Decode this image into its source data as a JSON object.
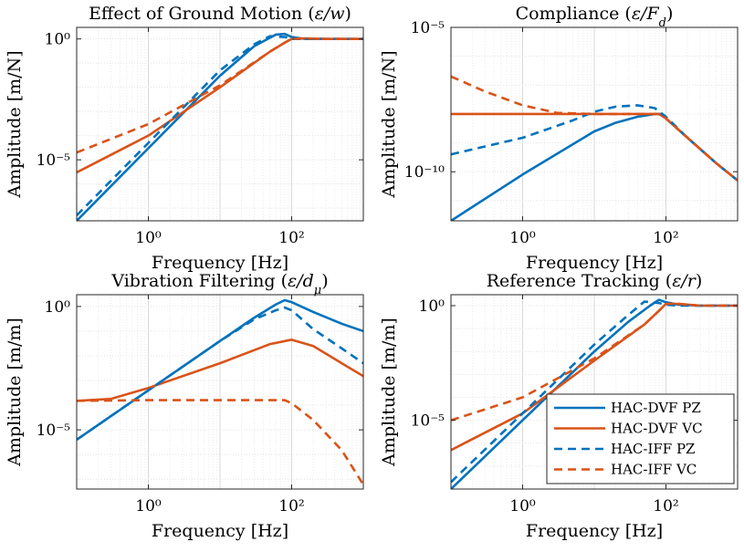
{
  "colors": {
    "pz": "#0072BD",
    "vc": "#D95319"
  },
  "legend": {
    "panel": 3,
    "placement": "bottom-right",
    "entries": [
      {
        "label": "HAC-DVF PZ",
        "color": "#0072BD",
        "dash": false
      },
      {
        "label": "HAC-DVF VC",
        "color": "#D95319",
        "dash": false
      },
      {
        "label": "HAC-IFF PZ",
        "color": "#0072BD",
        "dash": true
      },
      {
        "label": "HAC-IFF VC",
        "color": "#D95319",
        "dash": true
      }
    ]
  },
  "chart_data": [
    {
      "type": "line",
      "title_text": "Effect of Ground Motion (",
      "title_math": "ε/w",
      "title_close": ")",
      "xlabel": "Frequency [Hz]",
      "ylabel": "Amplitude [m/N]",
      "xscale": "log",
      "yscale": "log",
      "xlim": [
        0.1,
        1000
      ],
      "ylim": [
        3e-08,
        3
      ],
      "grid": true,
      "xticks": [
        {
          "value": 1,
          "label": "10⁰"
        },
        {
          "value": 100,
          "label": "10²"
        }
      ],
      "yticks": [
        {
          "value": 1,
          "label": "10⁰"
        },
        {
          "value": 1e-05,
          "label": "10⁻⁵"
        }
      ],
      "series": [
        {
          "color": "#0072BD",
          "dash": false,
          "x": [
            0.1,
            1,
            10,
            30,
            60,
            80,
            100,
            150,
            300,
            1000
          ],
          "y": [
            3e-08,
            3e-05,
            0.03,
            0.5,
            1.5,
            1.6,
            1.2,
            1.0,
            1.0,
            1.0
          ]
        },
        {
          "color": "#D95319",
          "dash": false,
          "x": [
            0.1,
            1,
            10,
            50,
            80,
            100,
            150,
            300,
            1000
          ],
          "y": [
            3e-06,
            0.0001,
            0.01,
            0.3,
            0.7,
            1.0,
            1.05,
            1.0,
            1.0
          ]
        },
        {
          "color": "#0072BD",
          "dash": true,
          "x": [
            0.1,
            1,
            10,
            30,
            50,
            80,
            100,
            150,
            300,
            1000
          ],
          "y": [
            5e-08,
            5e-05,
            0.05,
            0.6,
            1.3,
            1.2,
            1.0,
            1.0,
            1.0,
            1.0
          ]
        },
        {
          "color": "#D95319",
          "dash": true,
          "x": [
            0.1,
            1,
            10,
            50,
            80,
            100,
            150,
            300,
            1000
          ],
          "y": [
            2e-05,
            0.0003,
            0.012,
            0.3,
            0.7,
            1.0,
            1.05,
            1.0,
            1.0
          ]
        }
      ]
    },
    {
      "type": "line",
      "title_text": "Compliance (",
      "title_math": "ε/F_d",
      "title_close": ")",
      "xlabel": "Frequency [Hz]",
      "ylabel": "Amplitude [m/N]",
      "xscale": "log",
      "yscale": "log",
      "xlim": [
        0.1,
        1000
      ],
      "ylim": [
        2e-12,
        1e-05
      ],
      "grid": true,
      "xticks": [
        {
          "value": 1,
          "label": "10⁰"
        },
        {
          "value": 100,
          "label": "10²"
        }
      ],
      "yticks": [
        {
          "value": 1e-05,
          "label": "10⁻⁵"
        },
        {
          "value": 1e-10,
          "label": "10⁻¹⁰"
        }
      ],
      "series": [
        {
          "color": "#0072BD",
          "dash": false,
          "x": [
            0.1,
            1,
            10,
            20,
            40,
            70,
            85,
            100,
            200,
            500,
            1000
          ],
          "y": [
            2e-12,
            8e-11,
            2.5e-09,
            5e-09,
            8e-09,
            1e-08,
            1e-08,
            7e-09,
            1.5e-09,
            2e-10,
            5e-11
          ]
        },
        {
          "color": "#D95319",
          "dash": false,
          "x": [
            0.1,
            1,
            10,
            50,
            80,
            100,
            200,
            500,
            1000
          ],
          "y": [
            1e-08,
            1e-08,
            1e-08,
            1e-08,
            1e-08,
            7e-09,
            1.5e-09,
            2e-10,
            5e-11
          ]
        },
        {
          "color": "#0072BD",
          "dash": true,
          "x": [
            0.1,
            1,
            5,
            10,
            20,
            40,
            70,
            100,
            200,
            500,
            1000
          ],
          "y": [
            4e-10,
            1.5e-09,
            6e-09,
            1.2e-08,
            1.8e-08,
            2e-08,
            1.6e-08,
            8e-09,
            1.5e-09,
            2e-10,
            5e-11
          ]
        },
        {
          "color": "#D95319",
          "dash": true,
          "x": [
            0.1,
            0.3,
            1,
            3,
            10,
            80,
            100,
            200,
            500,
            1000
          ],
          "y": [
            2e-07,
            6e-08,
            2e-08,
            1.1e-08,
            1e-08,
            1e-08,
            7e-09,
            1.5e-09,
            2e-10,
            5e-11
          ]
        }
      ]
    },
    {
      "type": "line",
      "title_text": "Vibration Filtering (",
      "title_math": "ε/d_μ",
      "title_close": ")",
      "xlabel": "Frequency [Hz]",
      "ylabel": "Amplitude [m/m]",
      "xscale": "log",
      "yscale": "log",
      "xlim": [
        0.1,
        1000
      ],
      "ylim": [
        4e-08,
        3
      ],
      "grid": true,
      "xticks": [
        {
          "value": 1,
          "label": "10⁰"
        },
        {
          "value": 100,
          "label": "10²"
        }
      ],
      "yticks": [
        {
          "value": 1,
          "label": "10⁰"
        },
        {
          "value": 1e-05,
          "label": "10⁻⁵"
        }
      ],
      "series": [
        {
          "color": "#0072BD",
          "dash": false,
          "x": [
            0.1,
            1,
            10,
            30,
            60,
            80,
            100,
            200,
            500,
            1000
          ],
          "y": [
            4e-06,
            0.0004,
            0.04,
            0.35,
            1.2,
            1.8,
            1.5,
            0.6,
            0.2,
            0.1
          ]
        },
        {
          "color": "#D95319",
          "dash": false,
          "x": [
            0.1,
            0.3,
            1,
            10,
            50,
            100,
            200,
            500,
            1000
          ],
          "y": [
            0.00015,
            0.00018,
            0.0005,
            0.005,
            0.03,
            0.045,
            0.025,
            0.005,
            0.0015
          ]
        },
        {
          "color": "#0072BD",
          "dash": true,
          "x": [
            0.1,
            1,
            10,
            30,
            60,
            80,
            100,
            200,
            500,
            1000
          ],
          "y": [
            4e-06,
            0.0004,
            0.04,
            0.3,
            0.7,
            0.9,
            0.7,
            0.12,
            0.02,
            0.005
          ]
        },
        {
          "color": "#D95319",
          "dash": true,
          "x": [
            0.1,
            1,
            10,
            50,
            80,
            100,
            200,
            500,
            1000
          ],
          "y": [
            0.00015,
            0.00016,
            0.00016,
            0.00016,
            0.00016,
            0.00012,
            2.5e-05,
            1.5e-06,
            6e-08
          ]
        }
      ]
    },
    {
      "type": "line",
      "title_text": "Reference Tracking (",
      "title_math": "ε/r",
      "title_close": ")",
      "xlabel": "Frequency [Hz]",
      "ylabel": "Amplitude [m/m]",
      "xscale": "log",
      "yscale": "log",
      "xlim": [
        0.1,
        1000
      ],
      "ylim": [
        1e-08,
        3
      ],
      "grid": true,
      "xticks": [
        {
          "value": 1,
          "label": "10⁰"
        },
        {
          "value": 100,
          "label": "10²"
        }
      ],
      "yticks": [
        {
          "value": 1,
          "label": "10⁰"
        },
        {
          "value": 1e-05,
          "label": "10⁻⁵"
        }
      ],
      "series": [
        {
          "color": "#0072BD",
          "dash": false,
          "x": [
            0.1,
            1,
            10,
            30,
            60,
            80,
            100,
            150,
            300,
            1000
          ],
          "y": [
            1e-08,
            1e-05,
            0.01,
            0.2,
            1.0,
            1.8,
            1.4,
            1.1,
            1.0,
            1.0
          ]
        },
        {
          "color": "#D95319",
          "dash": false,
          "x": [
            0.1,
            1,
            10,
            50,
            80,
            100,
            150,
            300,
            1000
          ],
          "y": [
            5e-07,
            2e-05,
            0.004,
            0.15,
            0.6,
            1.2,
            1.2,
            1.0,
            1.0
          ]
        },
        {
          "color": "#0072BD",
          "dash": true,
          "x": [
            0.1,
            1,
            10,
            30,
            50,
            80,
            100,
            150,
            300,
            1000
          ],
          "y": [
            2e-08,
            2e-05,
            0.02,
            0.4,
            1.5,
            1.3,
            1.1,
            1.0,
            1.0,
            1.0
          ]
        },
        {
          "color": "#D95319",
          "dash": true,
          "x": [
            0.1,
            1,
            10,
            50,
            80,
            100,
            150,
            300,
            1000
          ],
          "y": [
            1e-05,
            0.0001,
            0.005,
            0.15,
            0.6,
            1.2,
            1.2,
            1.0,
            1.0
          ]
        }
      ]
    }
  ]
}
